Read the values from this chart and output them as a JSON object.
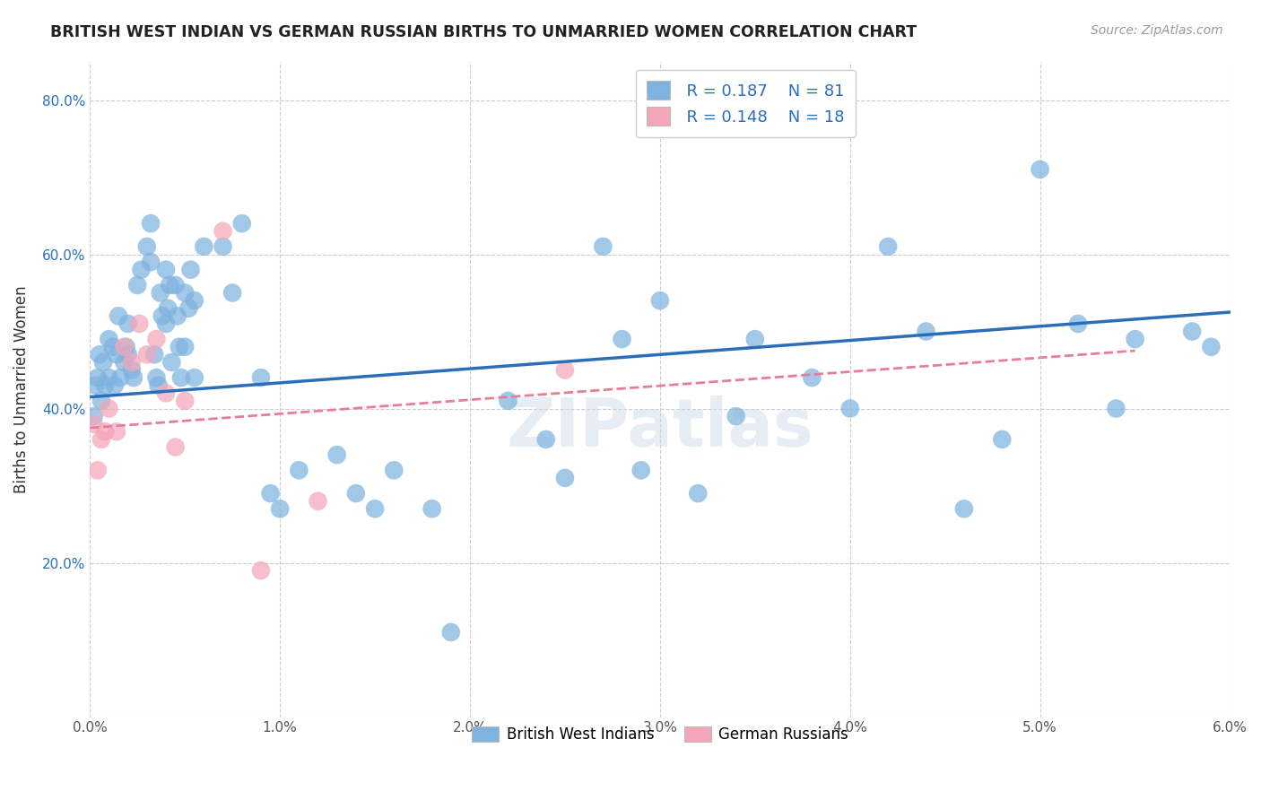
{
  "title": "BRITISH WEST INDIAN VS GERMAN RUSSIAN BIRTHS TO UNMARRIED WOMEN CORRELATION CHART",
  "source": "Source: ZipAtlas.com",
  "ylabel": "Births to Unmarried Women",
  "xlim": [
    0.0,
    0.06
  ],
  "ylim": [
    0.0,
    0.85
  ],
  "xticks": [
    0.0,
    0.01,
    0.02,
    0.03,
    0.04,
    0.05,
    0.06
  ],
  "xticklabels": [
    "0.0%",
    "1.0%",
    "2.0%",
    "3.0%",
    "4.0%",
    "5.0%",
    "6.0%"
  ],
  "yticks": [
    0.0,
    0.2,
    0.4,
    0.6,
    0.8
  ],
  "yticklabels": [
    "",
    "20.0%",
    "40.0%",
    "60.0%",
    "80.0%"
  ],
  "blue_color": "#7EB3E0",
  "pink_color": "#F4A6B8",
  "line_blue": "#2A6EBB",
  "line_pink": "#E87D9A",
  "grid_color": "#CCCCCC",
  "watermark": "ZIPatlas",
  "blue_points_x": [
    0.0002,
    0.0003,
    0.0004,
    0.0005,
    0.0006,
    0.0007,
    0.0008,
    0.001,
    0.001,
    0.0012,
    0.0013,
    0.0014,
    0.0015,
    0.0016,
    0.0018,
    0.0019,
    0.002,
    0.002,
    0.0022,
    0.0023,
    0.0025,
    0.0027,
    0.003,
    0.0032,
    0.0032,
    0.0034,
    0.0035,
    0.0036,
    0.0037,
    0.0038,
    0.004,
    0.004,
    0.0041,
    0.0042,
    0.0043,
    0.0045,
    0.0046,
    0.0047,
    0.0048,
    0.005,
    0.005,
    0.0052,
    0.0053,
    0.0055,
    0.0055,
    0.006,
    0.007,
    0.0075,
    0.008,
    0.009,
    0.0095,
    0.01,
    0.011,
    0.013,
    0.014,
    0.015,
    0.016,
    0.018,
    0.019,
    0.022,
    0.024,
    0.025,
    0.027,
    0.028,
    0.029,
    0.03,
    0.032,
    0.034,
    0.035,
    0.038,
    0.04,
    0.042,
    0.044,
    0.046,
    0.048,
    0.05,
    0.052,
    0.054,
    0.055,
    0.058,
    0.059
  ],
  "blue_points_y": [
    0.39,
    0.43,
    0.44,
    0.47,
    0.41,
    0.46,
    0.43,
    0.49,
    0.44,
    0.48,
    0.43,
    0.47,
    0.52,
    0.44,
    0.46,
    0.48,
    0.51,
    0.47,
    0.45,
    0.44,
    0.56,
    0.58,
    0.61,
    0.64,
    0.59,
    0.47,
    0.44,
    0.43,
    0.55,
    0.52,
    0.58,
    0.51,
    0.53,
    0.56,
    0.46,
    0.56,
    0.52,
    0.48,
    0.44,
    0.55,
    0.48,
    0.53,
    0.58,
    0.54,
    0.44,
    0.61,
    0.61,
    0.55,
    0.64,
    0.44,
    0.29,
    0.27,
    0.32,
    0.34,
    0.29,
    0.27,
    0.32,
    0.27,
    0.11,
    0.41,
    0.36,
    0.31,
    0.61,
    0.49,
    0.32,
    0.54,
    0.29,
    0.39,
    0.49,
    0.44,
    0.4,
    0.61,
    0.5,
    0.27,
    0.36,
    0.71,
    0.51,
    0.4,
    0.49,
    0.5,
    0.48
  ],
  "pink_points_x": [
    0.0002,
    0.0004,
    0.0006,
    0.0008,
    0.001,
    0.0014,
    0.0018,
    0.0022,
    0.0026,
    0.003,
    0.0035,
    0.004,
    0.0045,
    0.005,
    0.007,
    0.009,
    0.012,
    0.025
  ],
  "pink_points_y": [
    0.38,
    0.32,
    0.36,
    0.37,
    0.4,
    0.37,
    0.48,
    0.46,
    0.51,
    0.47,
    0.49,
    0.42,
    0.35,
    0.41,
    0.63,
    0.19,
    0.28,
    0.45
  ],
  "blue_line_x": [
    0.0,
    0.06
  ],
  "blue_line_y": [
    0.415,
    0.525
  ],
  "pink_line_x": [
    0.0,
    0.055
  ],
  "pink_line_y": [
    0.375,
    0.475
  ]
}
